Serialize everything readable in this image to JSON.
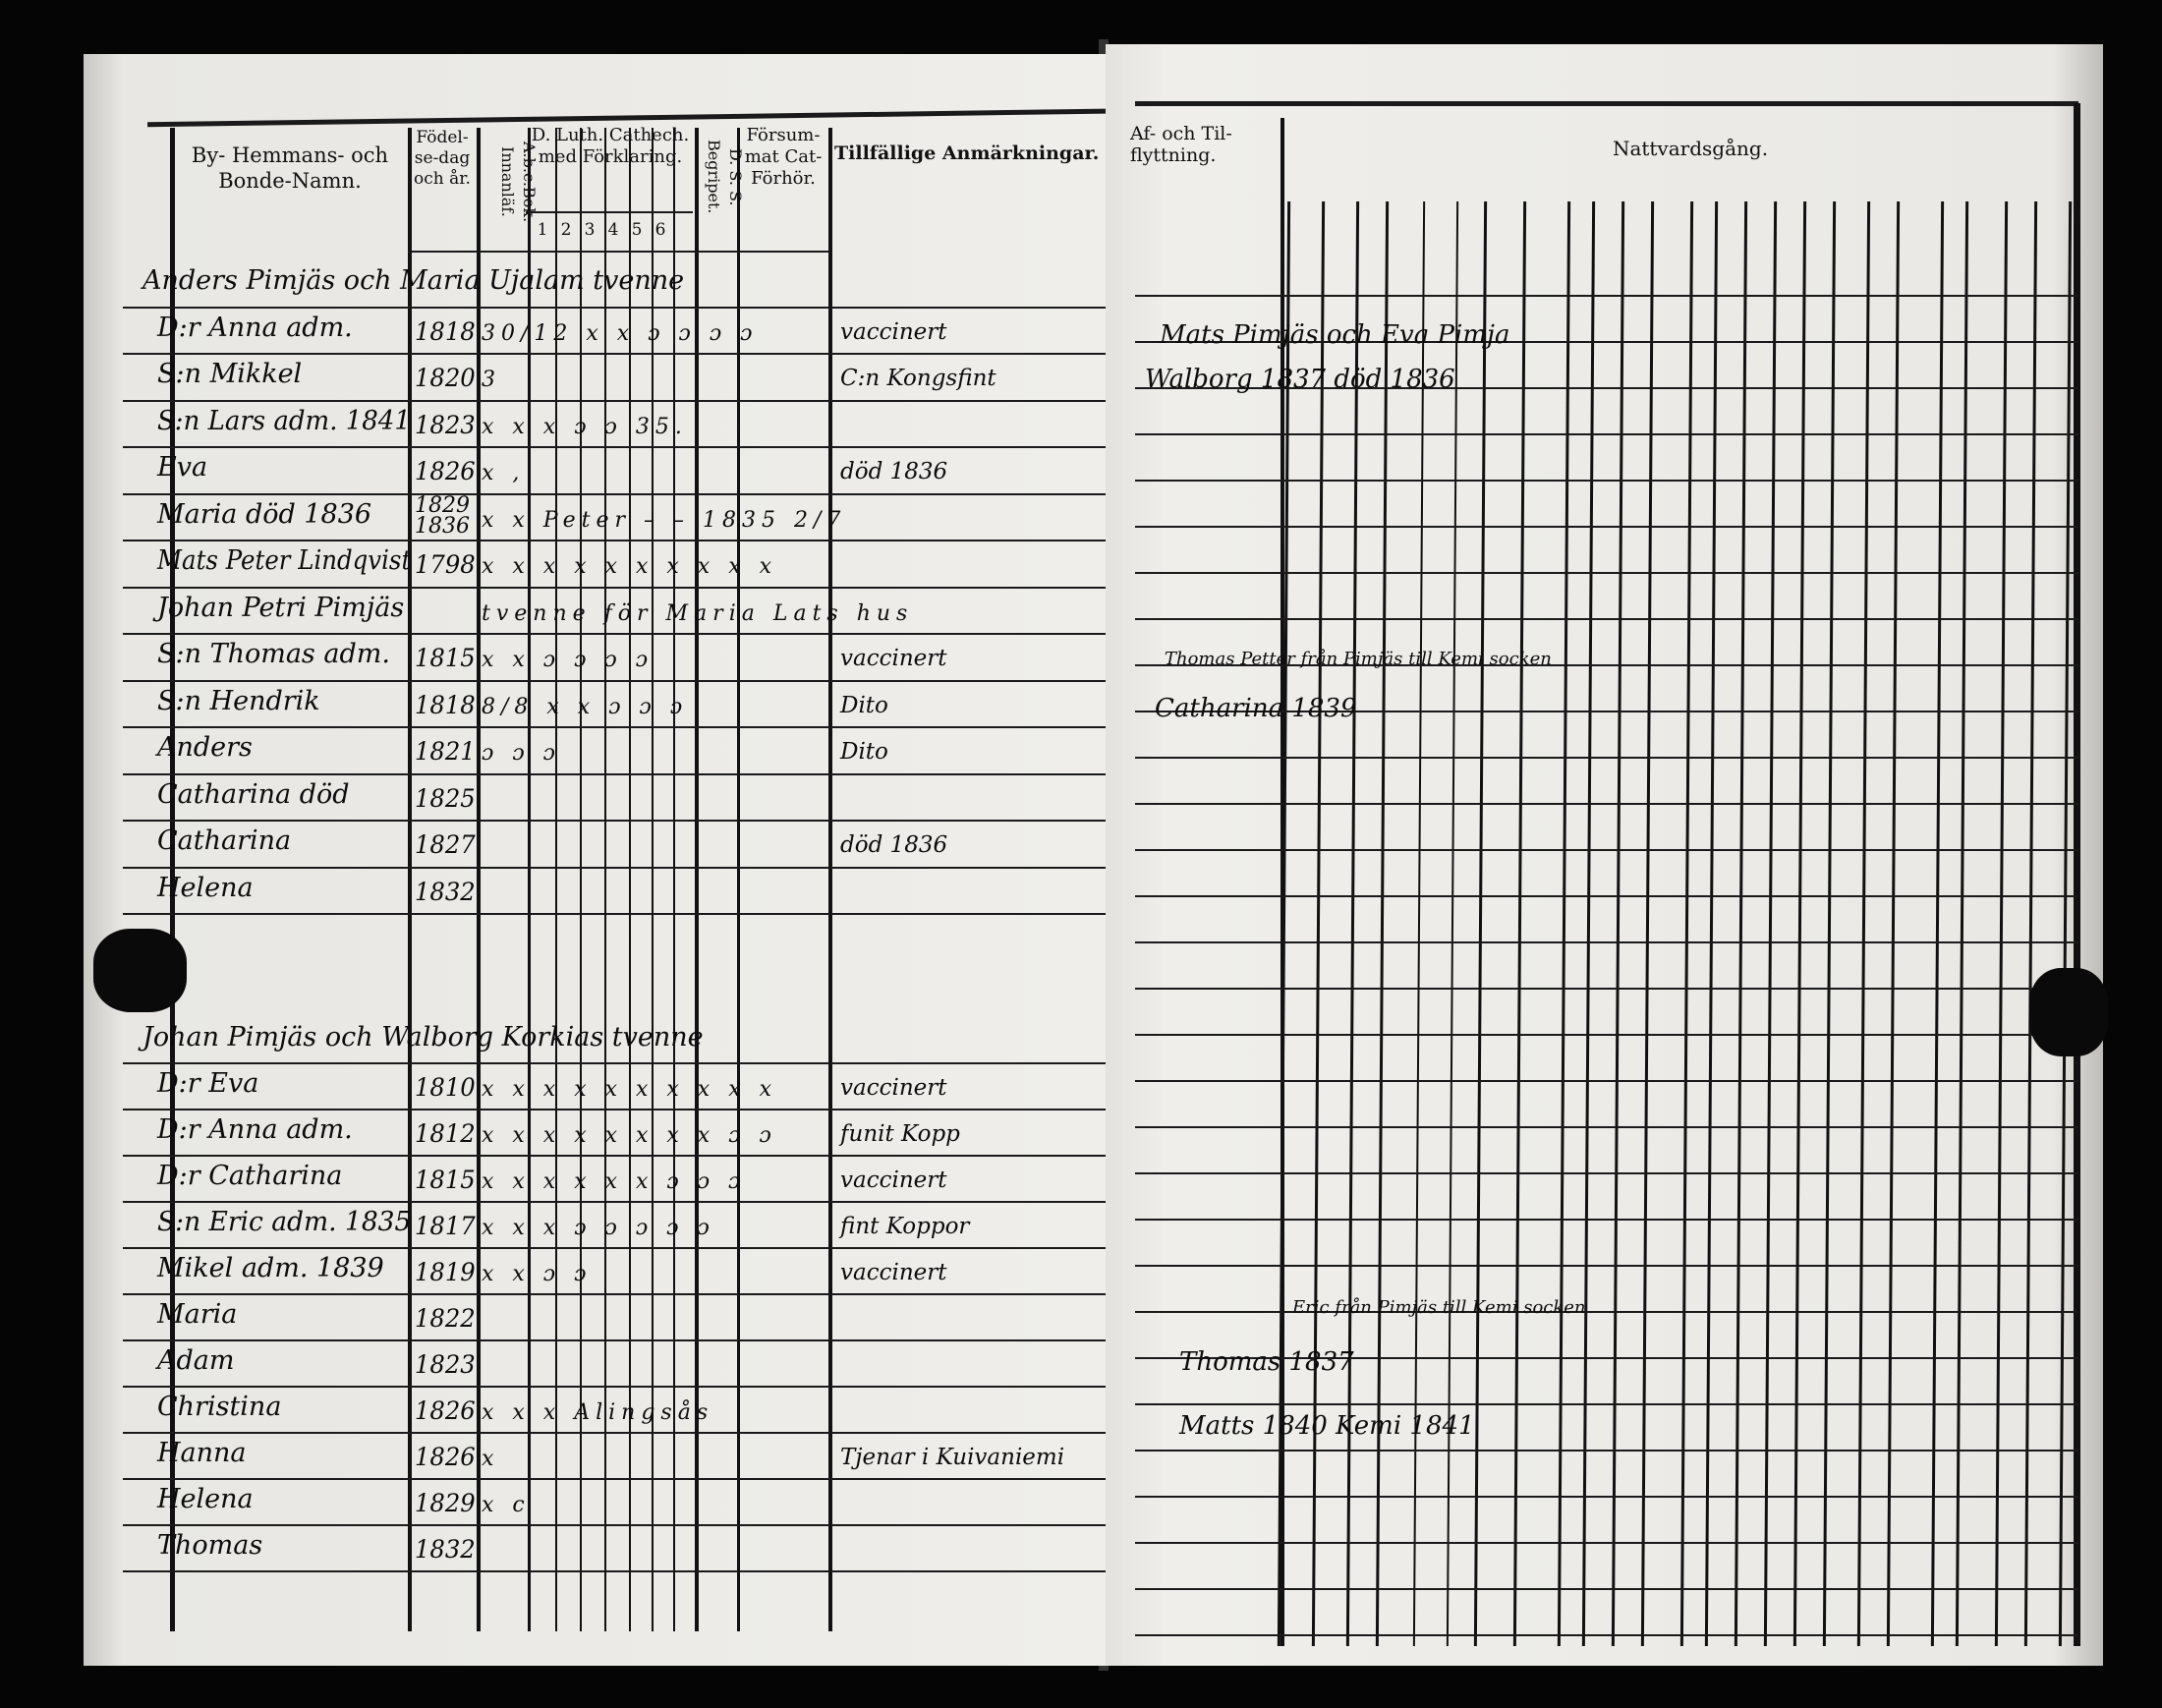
{
  "left_page": {
    "headers": {
      "name": "By- Hemmans- och Bonde-Namn.",
      "birth": "Födel-se-dag och år.",
      "abc": "A.b.c.Bok. Innanläf.",
      "catech": "D. Luth. Cathech. med Förklaring.",
      "catech_sub": [
        "1",
        "2",
        "3",
        "4",
        "5",
        "6"
      ],
      "dss": "D. S. S. Begripet.",
      "forsummat": "Försum-mat Cat-Förhör.",
      "remarks": "Tillfällige Anmärkningar."
    },
    "rows_block1": [
      {
        "name": "Anders Pimjäs och Maria Ujalam tvenne",
        "year": "",
        "marks": "",
        "remark": ""
      },
      {
        "name": "D:r Anna adm.",
        "year": "1818",
        "marks": "30/12 x x ɔ ɔ ɔ ɔ",
        "remark": "vaccinert"
      },
      {
        "name": "S:n Mikkel",
        "year": "1820",
        "marks": "3",
        "remark": "C:n Kongsfint"
      },
      {
        "name": "S:n Lars adm. 1841",
        "year": "1823",
        "marks": "x x x ɔ ɔ      35.",
        "remark": ""
      },
      {
        "name": "Eva",
        "year": "1826",
        "marks": "x ,",
        "remark": "död 1836"
      },
      {
        "name": "Maria död 1836",
        "year": "1829 1836",
        "marks": "x x Peter – – 1835 2/7",
        "remark": ""
      },
      {
        "name": "Mats Peter Lindqvist",
        "year": "1798",
        "marks": "x x x x x x x x x x",
        "remark": ""
      },
      {
        "name": "Johan Petri Pimjäs",
        "year": "",
        "marks": "tvenne för Maria Lats hus",
        "remark": ""
      },
      {
        "name": "S:n Thomas adm.",
        "year": "1815",
        "marks": "x x ɔ ɔ ɔ ɔ",
        "remark": "vaccinert"
      },
      {
        "name": "S:n Hendrik",
        "year": "1818",
        "marks": "8/8 x x ɔ ɔ ɔ",
        "remark": "Dito"
      },
      {
        "name": "Anders",
        "year": "1821",
        "marks": "ɔ ɔ ɔ",
        "remark": "Dito"
      },
      {
        "name": "Catharina död",
        "year": "1825",
        "marks": "",
        "remark": ""
      },
      {
        "name": "Catharina",
        "year": "1827",
        "marks": "",
        "remark": "död 1836"
      },
      {
        "name": "Helena",
        "year": "1832",
        "marks": "",
        "remark": ""
      }
    ],
    "rows_block2": [
      {
        "name": "Johan Pimjäs och Walborg Korkias tvenne",
        "year": "",
        "marks": "",
        "remark": ""
      },
      {
        "name": "D:r Eva",
        "year": "1810",
        "marks": "x x x x x x x x x x",
        "remark": "vaccinert"
      },
      {
        "name": "D:r Anna adm.",
        "year": "1812",
        "marks": "x x x x x x x x ɔ ɔ",
        "remark": "funit Kopp"
      },
      {
        "name": "D:r Catharina",
        "year": "1815",
        "marks": "x x x x x x ɔ ɔ ɔ",
        "remark": "vaccinert"
      },
      {
        "name": "S:n Eric adm. 1835",
        "year": "1817",
        "marks": "x x x ɔ ɔ ɔ ɔ ɔ",
        "remark": "fint Koppor"
      },
      {
        "name": "Mikel adm. 1839",
        "year": "1819",
        "marks": "x x ɔ ɔ",
        "remark": "vaccinert"
      },
      {
        "name": "Maria",
        "year": "1822",
        "marks": "",
        "remark": ""
      },
      {
        "name": "Adam",
        "year": "1823",
        "marks": "",
        "remark": ""
      },
      {
        "name": "Christina",
        "year": "1826",
        "marks": "x x x Alingsås",
        "remark": ""
      },
      {
        "name": "Hanna",
        "year": "1826",
        "marks": "x",
        "remark": "Tjenar i Kuivaniemi"
      },
      {
        "name": "Helena",
        "year": "1829",
        "marks": "x c",
        "remark": ""
      },
      {
        "name": "Thomas",
        "year": "1832",
        "marks": "",
        "remark": ""
      }
    ]
  },
  "right_page": {
    "headers": {
      "moving": "Af- och Til-flyttning.",
      "communion": "Nattvardsgång."
    },
    "entries": [
      {
        "text": "Mats Pimjäs och Eva Pimja"
      },
      {
        "text": "Walborg 1837   död 1836"
      },
      {
        "text": "Thomas Petter från Pimjäs till Kemi socken"
      },
      {
        "text": "Catharina 1839"
      },
      {
        "text": "Eric från Pimjäs till Kemi socken"
      },
      {
        "text": "Thomas 1837"
      },
      {
        "text": "Matts 1840 Kemi 1841"
      }
    ]
  }
}
